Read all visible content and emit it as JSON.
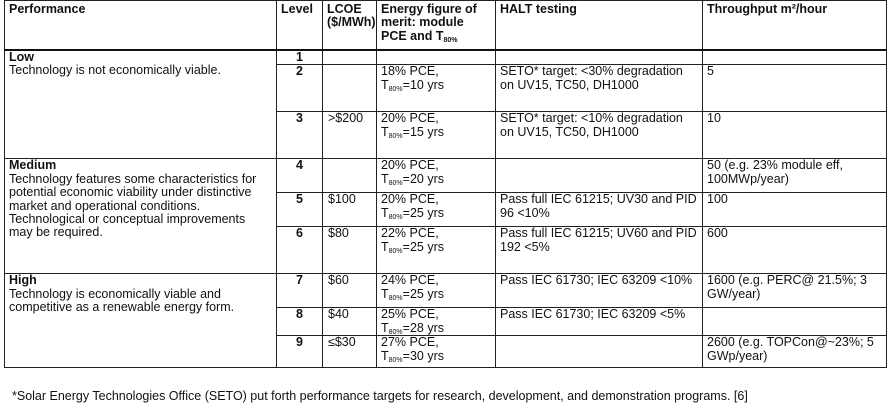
{
  "headers": {
    "performance": "Performance",
    "level": "Level",
    "lcoe": "LCOE ($/MWh)",
    "efom": "Energy figure of merit: module PCE and T",
    "efom_sub": "80%",
    "halt": "HALT testing",
    "throughput": "Throughput m²/hour"
  },
  "groups": {
    "low": {
      "title": "Low",
      "desc": "Technology is not economically viable."
    },
    "medium": {
      "title": "Medium",
      "desc": "Technology features some characteristics for potential economic viability under distinctive market and operational conditions. Technological or conceptual improvements may be required."
    },
    "high": {
      "title": "High",
      "desc": "Technology is economically viable and competitive as a renewable energy form."
    }
  },
  "rows": [
    {
      "level": "1",
      "lcoe": "",
      "pce": "",
      "t80": "",
      "halt": "",
      "throughput": ""
    },
    {
      "level": "2",
      "lcoe": "",
      "pce": "18% PCE,",
      "t80": "=10 yrs",
      "halt": "SETO* target: <30% degradation on UV15, TC50, DH1000",
      "throughput": "5"
    },
    {
      "level": "3",
      "lcoe": ">$200",
      "pce": "20% PCE,",
      "t80": "=15 yrs",
      "halt": "SETO* target: <10% degradation on UV15, TC50, DH1000",
      "throughput": "10"
    },
    {
      "level": "4",
      "lcoe": "",
      "pce": "20% PCE,",
      "t80": "=20 yrs",
      "halt": "",
      "throughput": "50 (e.g. 23% module eff, 100MWp/year)"
    },
    {
      "level": "5",
      "lcoe": "$100",
      "pce": "20% PCE,",
      "t80": "=25 yrs",
      "halt": "Pass full IEC 61215; UV30 and PID 96 <10%",
      "throughput": "100"
    },
    {
      "level": "6",
      "lcoe": "$80",
      "pce": "22% PCE,",
      "t80": "=25 yrs",
      "halt": "Pass full IEC 61215; UV60 and PID 192 <5%",
      "throughput": "600"
    },
    {
      "level": "7",
      "lcoe": "$60",
      "pce": "24% PCE,",
      "t80": "=25 yrs",
      "halt": "Pass IEC 61730; IEC 63209 <10%",
      "throughput": "1600 (e.g. PERC@ 21.5%; 3 GW/year)"
    },
    {
      "level": "8",
      "lcoe": "$40",
      "pce": "25% PCE,",
      "t80": "=28 yrs",
      "halt": "Pass IEC 61730; IEC 63209 <5%",
      "throughput": ""
    },
    {
      "level": "9",
      "lcoe": "≤$30",
      "pce": "27% PCE,",
      "t80": "=30 yrs",
      "halt": "",
      "throughput": "2600 (e.g. TOPCon@~23%; 5 GWp/year)"
    }
  ],
  "t_symbol": "T",
  "t_sub": "80%",
  "footnote": "*Solar Energy Technologies Office (SETO) put forth performance targets for research, development, and demonstration programs. [6]"
}
